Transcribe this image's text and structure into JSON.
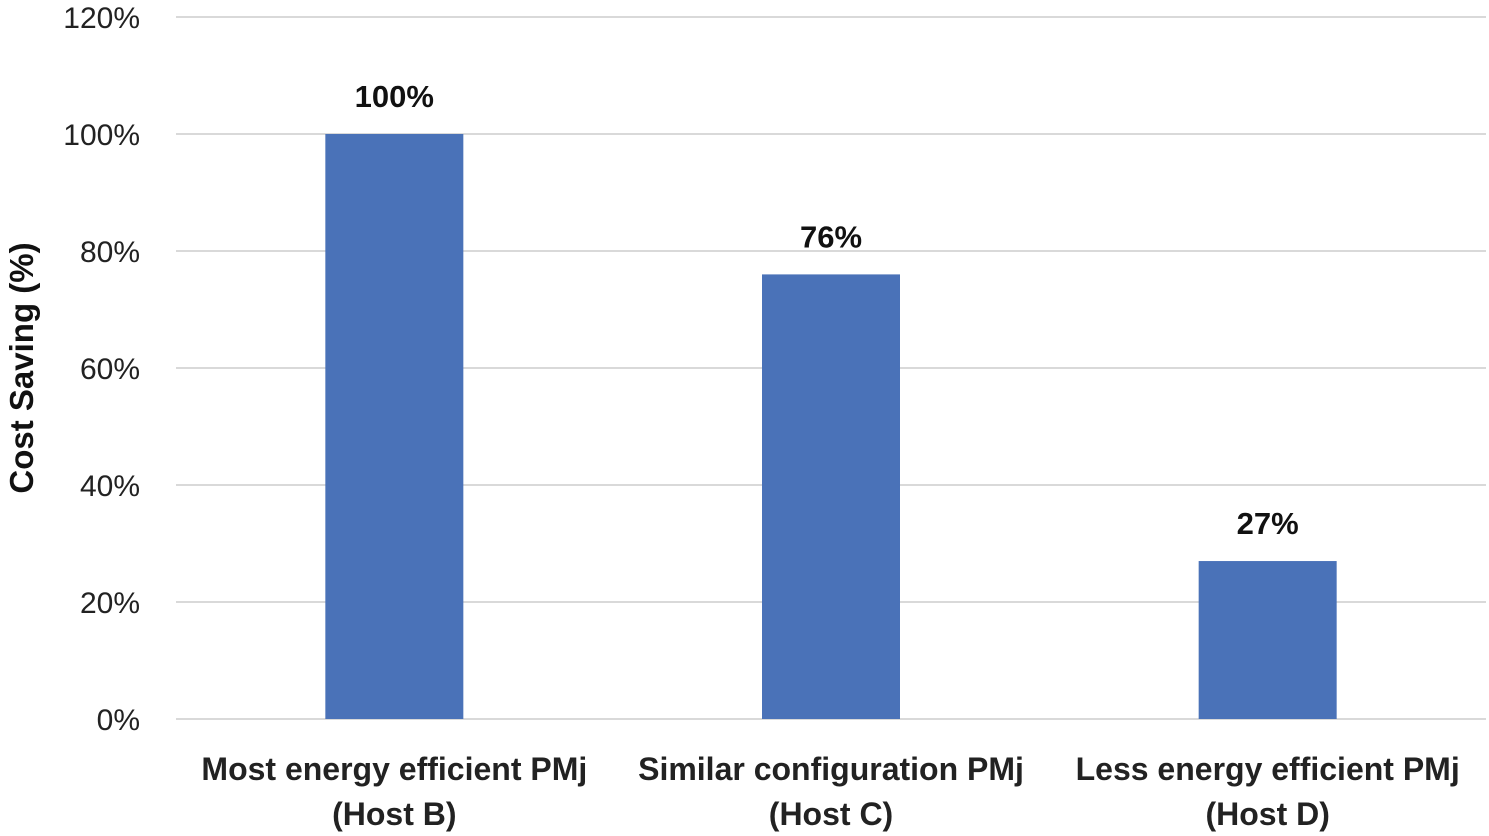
{
  "chart_data": {
    "type": "bar",
    "categories": [
      [
        "Most energy efficient PMj",
        "(Host B)"
      ],
      [
        "Similar configuration PMj",
        "(Host C)"
      ],
      [
        "Less energy efficient PMj",
        "(Host D)"
      ]
    ],
    "values": [
      100,
      76,
      27
    ],
    "data_labels": [
      "100%",
      "76%",
      "27%"
    ],
    "ylabel": "Cost Saving (%)",
    "xlabel": "",
    "ylim": [
      0,
      120
    ],
    "yticks": [
      0,
      20,
      40,
      60,
      80,
      100,
      120
    ],
    "ytick_labels": [
      "0%",
      "20%",
      "40%",
      "60%",
      "80%",
      "100%",
      "120%"
    ],
    "grid": true,
    "legend": "none",
    "bar_color": "#4a72b8",
    "gridline_color": "#d9d9d9"
  }
}
